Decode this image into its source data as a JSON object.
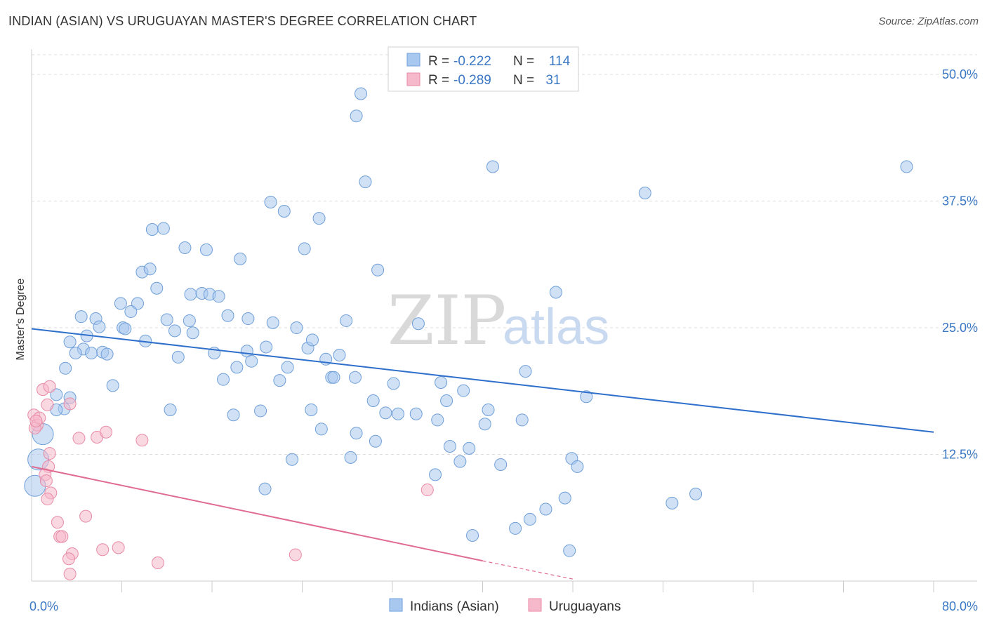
{
  "chart_data": {
    "type": "scatter",
    "title": "INDIAN (ASIAN) VS URUGUAYAN MASTER'S DEGREE CORRELATION CHART",
    "source": "Source: ZipAtlas.com",
    "xlabel": "",
    "ylabel": "Master's Degree",
    "xlim": [
      0,
      80
    ],
    "ylim": [
      0,
      52.5
    ],
    "x_tick_labels": [
      {
        "value": 0,
        "label": "0.0%"
      },
      {
        "value": 80,
        "label": "80.0%"
      }
    ],
    "y_tick_labels": [
      {
        "value": 12.5,
        "label": "12.5%"
      },
      {
        "value": 25,
        "label": "25.0%"
      },
      {
        "value": 37.5,
        "label": "37.5%"
      },
      {
        "value": 50,
        "label": "50.0%"
      }
    ],
    "watermark": {
      "zip": "ZIP",
      "atlas": "atlas"
    },
    "legend_stats": [
      {
        "r_label": "R =",
        "r_value": "-0.222",
        "n_label": "N =",
        "n_value": "114",
        "color": "#a9c8ef"
      },
      {
        "r_label": "R =",
        "r_value": "-0.289",
        "n_label": "N =",
        "n_value": "31",
        "color": "#f6b8cb"
      }
    ],
    "series": [
      {
        "name": "Indians (Asian)",
        "color": "#a9c8ef",
        "stroke": "#6f9fd8",
        "trend": {
          "x": [
            0,
            80
          ],
          "y": [
            24.9,
            14.7
          ],
          "color": "#2f6fcc"
        },
        "points": [
          [
            29.2,
            48.1
          ],
          [
            28.8,
            45.9
          ],
          [
            29.6,
            39.4
          ],
          [
            40.9,
            40.9
          ],
          [
            77.6,
            40.9
          ],
          [
            54.4,
            38.3
          ],
          [
            21.2,
            37.4
          ],
          [
            22.4,
            36.5
          ],
          [
            25.5,
            35.8
          ],
          [
            10.7,
            34.7
          ],
          [
            11.7,
            34.8
          ],
          [
            13.6,
            32.9
          ],
          [
            15.5,
            32.7
          ],
          [
            18.5,
            31.8
          ],
          [
            24.2,
            32.8
          ],
          [
            30.7,
            30.7
          ],
          [
            9.8,
            30.5
          ],
          [
            10.5,
            30.8
          ],
          [
            11.1,
            28.9
          ],
          [
            14.1,
            28.3
          ],
          [
            15.1,
            28.4
          ],
          [
            15.8,
            28.3
          ],
          [
            16.6,
            28.1
          ],
          [
            46.5,
            28.5
          ],
          [
            7.9,
            27.4
          ],
          [
            9.4,
            27.4
          ],
          [
            8.8,
            26.6
          ],
          [
            4.4,
            26.1
          ],
          [
            5.7,
            25.9
          ],
          [
            12.0,
            25.8
          ],
          [
            14.0,
            25.7
          ],
          [
            17.4,
            26.2
          ],
          [
            19.2,
            25.9
          ],
          [
            21.4,
            25.5
          ],
          [
            27.9,
            25.7
          ],
          [
            34.3,
            25.4
          ],
          [
            6.0,
            25.1
          ],
          [
            8.1,
            25.0
          ],
          [
            8.3,
            24.9
          ],
          [
            12.7,
            24.7
          ],
          [
            14.3,
            24.5
          ],
          [
            23.5,
            25.0
          ],
          [
            4.9,
            24.2
          ],
          [
            3.4,
            23.6
          ],
          [
            10.1,
            23.7
          ],
          [
            4.6,
            22.9
          ],
          [
            3.9,
            22.5
          ],
          [
            5.3,
            22.5
          ],
          [
            6.3,
            22.6
          ],
          [
            6.7,
            22.4
          ],
          [
            13.0,
            22.1
          ],
          [
            16.2,
            22.5
          ],
          [
            19.1,
            22.7
          ],
          [
            20.8,
            23.1
          ],
          [
            24.5,
            23.0
          ],
          [
            24.9,
            23.8
          ],
          [
            26.1,
            21.9
          ],
          [
            27.3,
            22.3
          ],
          [
            19.5,
            21.7
          ],
          [
            18.2,
            21.1
          ],
          [
            22.7,
            21.1
          ],
          [
            3.0,
            21.0
          ],
          [
            43.8,
            20.7
          ],
          [
            17.0,
            19.9
          ],
          [
            22.0,
            19.8
          ],
          [
            26.6,
            20.1
          ],
          [
            26.8,
            20.1
          ],
          [
            28.7,
            20.1
          ],
          [
            32.1,
            19.5
          ],
          [
            36.3,
            19.6
          ],
          [
            7.2,
            19.3
          ],
          [
            38.3,
            18.8
          ],
          [
            49.2,
            18.2
          ],
          [
            30.3,
            17.8
          ],
          [
            36.8,
            17.8
          ],
          [
            12.3,
            16.9
          ],
          [
            24.8,
            16.9
          ],
          [
            20.3,
            16.8
          ],
          [
            40.5,
            16.9
          ],
          [
            17.9,
            16.4
          ],
          [
            31.4,
            16.6
          ],
          [
            32.5,
            16.5
          ],
          [
            34.1,
            16.5
          ],
          [
            36.0,
            15.9
          ],
          [
            40.2,
            15.5
          ],
          [
            43.5,
            15.9
          ],
          [
            25.7,
            15.0
          ],
          [
            28.8,
            14.6
          ],
          [
            30.5,
            13.8
          ],
          [
            37.1,
            13.3
          ],
          [
            38.8,
            13.1
          ],
          [
            23.1,
            12.0
          ],
          [
            28.3,
            12.2
          ],
          [
            38.0,
            11.8
          ],
          [
            41.6,
            11.5
          ],
          [
            47.9,
            12.1
          ],
          [
            48.4,
            11.3
          ],
          [
            35.8,
            10.5
          ],
          [
            20.7,
            9.1
          ],
          [
            47.3,
            8.2
          ],
          [
            56.8,
            7.7
          ],
          [
            58.9,
            8.6
          ],
          [
            45.6,
            7.1
          ],
          [
            44.2,
            6.1
          ],
          [
            42.9,
            5.2
          ],
          [
            39.1,
            4.5
          ],
          [
            47.7,
            3.0
          ],
          [
            2.9,
            17.0
          ],
          [
            3.4,
            18.1
          ],
          [
            2.2,
            16.9
          ],
          [
            1.0,
            14.5
          ],
          [
            0.6,
            12.0
          ],
          [
            0.3,
            9.4
          ],
          [
            2.2,
            18.4
          ]
        ],
        "big_points": [
          [
            0.6,
            12.0
          ],
          [
            0.3,
            9.4
          ],
          [
            1.0,
            14.5
          ]
        ]
      },
      {
        "name": "Uruguayans",
        "color": "#f6b8cb",
        "stroke": "#e88aa6",
        "trend": {
          "x": [
            0,
            40
          ],
          "y": [
            11.3,
            2.0
          ],
          "color": "#e06b93",
          "dashed_extension_to_x": 48,
          "dashed_extension_y": 0.2
        },
        "points": [
          [
            0.2,
            16.4
          ],
          [
            0.5,
            15.4
          ],
          [
            0.3,
            15.1
          ],
          [
            0.7,
            16.1
          ],
          [
            1.0,
            18.9
          ],
          [
            1.4,
            17.4
          ],
          [
            1.6,
            19.2
          ],
          [
            3.4,
            17.5
          ],
          [
            4.2,
            14.1
          ],
          [
            5.8,
            14.2
          ],
          [
            6.6,
            14.7
          ],
          [
            9.8,
            13.9
          ],
          [
            1.6,
            12.6
          ],
          [
            1.5,
            11.3
          ],
          [
            1.2,
            10.5
          ],
          [
            1.3,
            9.9
          ],
          [
            1.7,
            8.7
          ],
          [
            1.4,
            8.1
          ],
          [
            4.8,
            6.4
          ],
          [
            2.3,
            5.8
          ],
          [
            2.5,
            4.4
          ],
          [
            2.7,
            4.4
          ],
          [
            7.7,
            3.3
          ],
          [
            6.3,
            3.1
          ],
          [
            3.6,
            2.7
          ],
          [
            3.3,
            2.2
          ],
          [
            11.2,
            1.8
          ],
          [
            23.4,
            2.6
          ],
          [
            3.4,
            0.7
          ],
          [
            35.1,
            9.0
          ],
          [
            0.4,
            15.8
          ]
        ]
      }
    ]
  }
}
